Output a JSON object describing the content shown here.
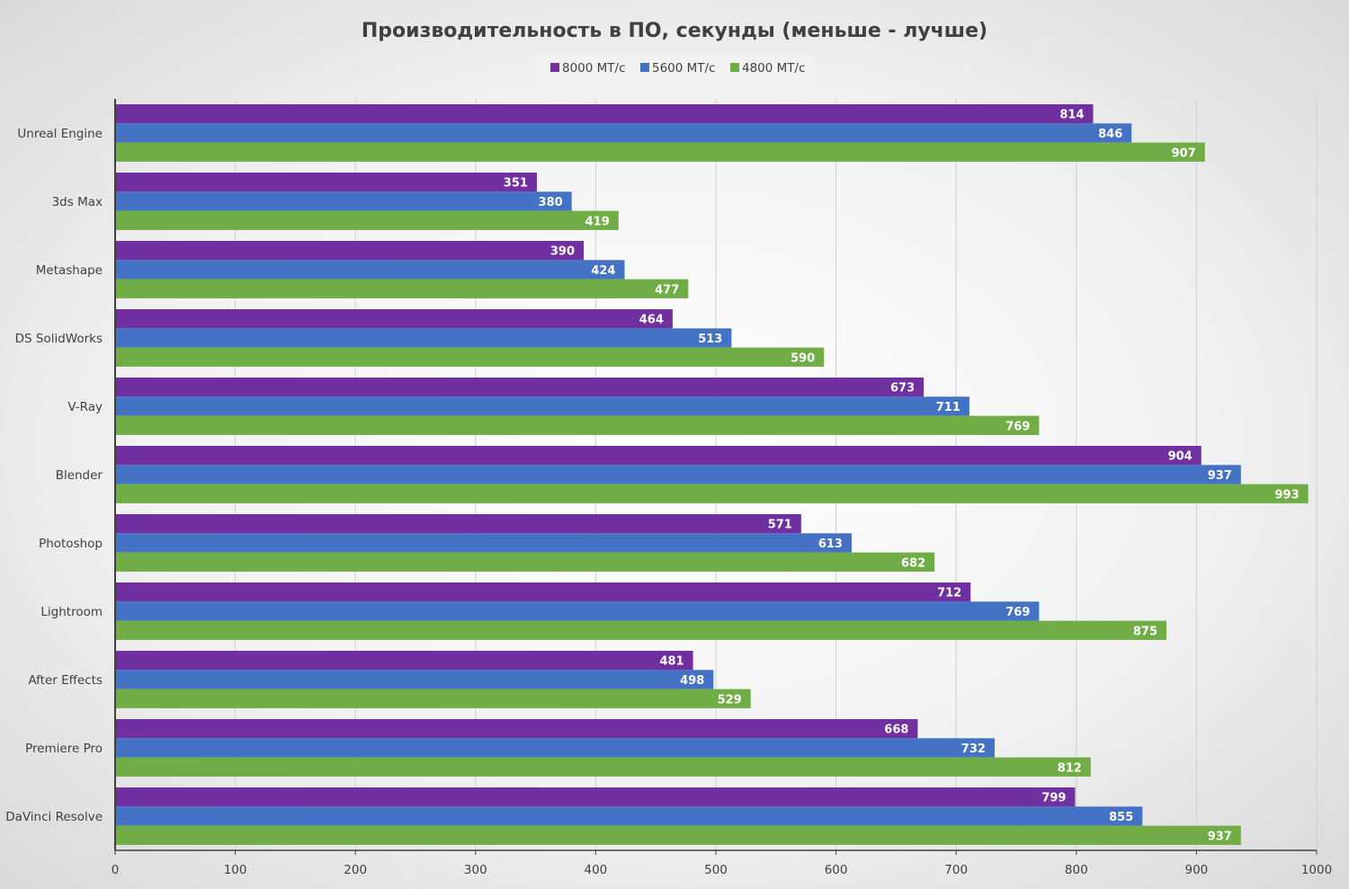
{
  "chart_data": {
    "type": "bar",
    "orientation": "horizontal",
    "title": "Производительность в ПО, секунды (меньше - лучше)",
    "categories": [
      "Unreal Engine",
      "3ds Max",
      "Metashape",
      "DS SolidWorks",
      "V-Ray",
      "Blender",
      "Photoshop",
      "Lightroom",
      "After Effects",
      "Premiere Pro",
      "DaVinci Resolve"
    ],
    "series": [
      {
        "name": "8000 MT/c",
        "color": "#7030A0",
        "values": [
          814,
          351,
          390,
          464,
          673,
          904,
          571,
          712,
          481,
          668,
          799
        ]
      },
      {
        "name": "5600 MT/c",
        "color": "#4472C4",
        "values": [
          846,
          380,
          424,
          513,
          711,
          937,
          613,
          769,
          498,
          732,
          855
        ]
      },
      {
        "name": "4800 MT/c",
        "color": "#70AD47",
        "values": [
          907,
          419,
          477,
          590,
          769,
          993,
          682,
          875,
          529,
          812,
          937
        ]
      }
    ],
    "xlim": [
      0,
      1000
    ],
    "xticks": [
      0,
      100,
      200,
      300,
      400,
      500,
      600,
      700,
      800,
      900,
      1000
    ],
    "grid": true,
    "legend": "top"
  }
}
